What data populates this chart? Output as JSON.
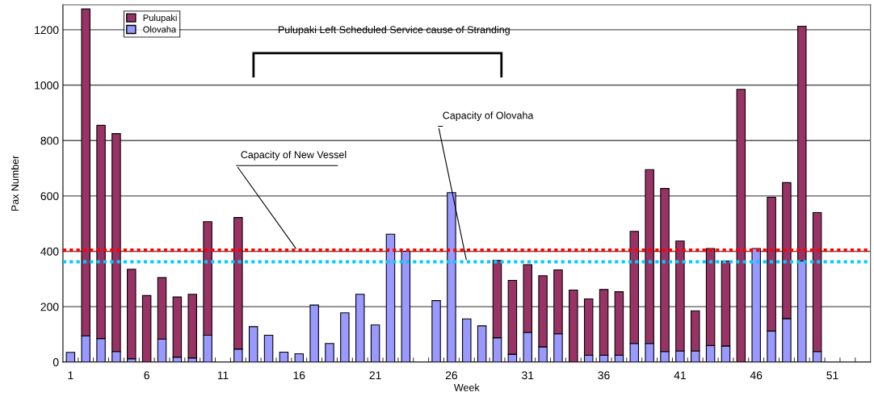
{
  "chart_data": {
    "type": "bar",
    "stacked": true,
    "xlabel": "Week",
    "ylabel": "Pax Number",
    "categories": [
      "1",
      null,
      null,
      null,
      null,
      "6",
      null,
      null,
      null,
      null,
      "11",
      null,
      null,
      null,
      null,
      "16",
      null,
      null,
      null,
      null,
      "21",
      null,
      null,
      null,
      null,
      "26",
      null,
      null,
      null,
      null,
      "31",
      null,
      null,
      null,
      null,
      "36",
      null,
      null,
      null,
      null,
      "41",
      null,
      null,
      null,
      null,
      "46",
      null,
      null,
      null,
      null,
      "51",
      null,
      null
    ],
    "series": [
      {
        "name": "Olovaha",
        "color": "#9999ff",
        "values": [
          35,
          95,
          85,
          38,
          12,
          0,
          83,
          18,
          15,
          97,
          0,
          47,
          128,
          97,
          36,
          30,
          206,
          67,
          178,
          245,
          134,
          462,
          400,
          0,
          222,
          612,
          156,
          131,
          88,
          28,
          107,
          55,
          102,
          0,
          25,
          25,
          25,
          67,
          67,
          38,
          40,
          40,
          60,
          58,
          0,
          410,
          112,
          157,
          365,
          38,
          0,
          0,
          0
        ]
      },
      {
        "name": "Pulupaki",
        "color": "#993366",
        "values": [
          0,
          1180,
          770,
          787,
          323,
          240,
          222,
          217,
          230,
          410,
          0,
          475,
          0,
          0,
          0,
          0,
          0,
          0,
          0,
          0,
          0,
          0,
          0,
          0,
          0,
          0,
          0,
          0,
          279,
          267,
          245,
          257,
          231,
          260,
          203,
          237,
          229,
          405,
          628,
          589,
          397,
          145,
          350,
          307,
          985,
          0,
          483,
          491,
          848,
          502,
          0,
          0,
          0
        ]
      }
    ],
    "ylim": [
      0,
      1290
    ],
    "yticks": [
      0,
      200,
      400,
      600,
      800,
      1000,
      1200
    ],
    "grid": "y",
    "legend": "top left",
    "ref_lines": [
      {
        "axis": "y",
        "value": 404,
        "label": "Capacity of New Vessel",
        "color": "#ff0000",
        "line_style": "dotted"
      },
      {
        "axis": "y",
        "value": 362,
        "label": "Capacity of Olovaha",
        "color": "#00ccff",
        "line_style": "dotted"
      }
    ],
    "annotations": [
      "Pulupaki Left Scheduled Service cause of Stranding"
    ]
  }
}
